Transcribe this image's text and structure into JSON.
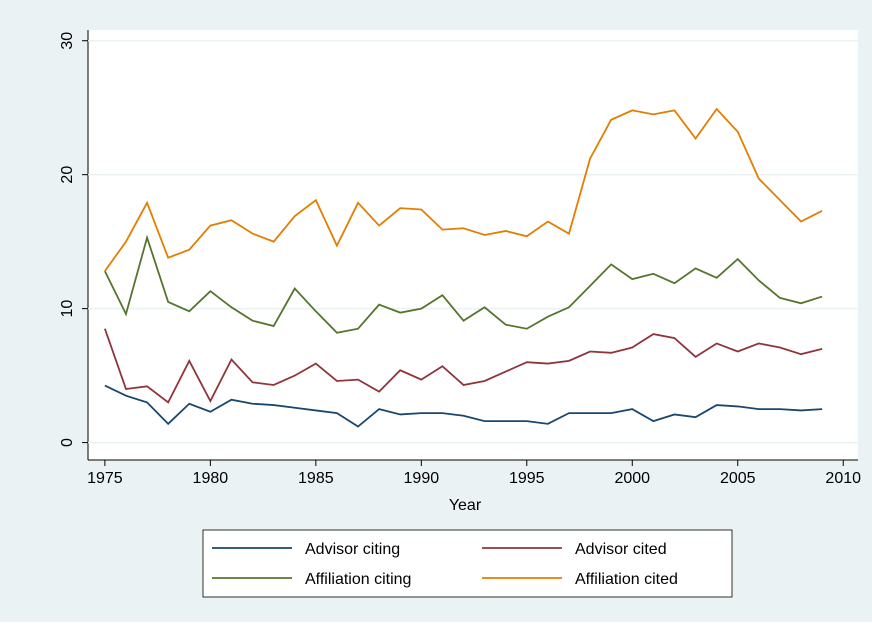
{
  "chart_data": {
    "type": "line",
    "x_label": "Year",
    "x": [
      1975,
      1976,
      1977,
      1978,
      1979,
      1980,
      1981,
      1982,
      1983,
      1984,
      1985,
      1986,
      1987,
      1988,
      1989,
      1990,
      1991,
      1992,
      1993,
      1994,
      1995,
      1996,
      1997,
      1998,
      1999,
      2000,
      2001,
      2002,
      2003,
      2004,
      2005,
      2006,
      2007,
      2008,
      2009
    ],
    "series": [
      {
        "name": "Advisor citing",
        "color": "#1a476f",
        "values": [
          4.26,
          3.5,
          3.0,
          1.4,
          2.9,
          2.3,
          3.2,
          2.9,
          2.8,
          2.6,
          2.4,
          2.2,
          1.2,
          2.5,
          2.1,
          2.2,
          2.2,
          2.0,
          1.6,
          1.6,
          1.6,
          1.4,
          2.2,
          2.2,
          2.2,
          2.5,
          1.6,
          2.1,
          1.9,
          2.8,
          2.7,
          2.5,
          2.5,
          2.4,
          2.5
        ]
      },
      {
        "name": "Advisor cited",
        "color": "#90353b",
        "values": [
          8.5,
          4.0,
          4.2,
          3.0,
          6.1,
          3.1,
          6.2,
          4.5,
          4.3,
          5.0,
          5.9,
          4.6,
          4.7,
          3.8,
          5.4,
          4.7,
          5.7,
          4.3,
          4.6,
          5.3,
          6.0,
          5.9,
          6.1,
          6.8,
          6.7,
          7.1,
          8.1,
          7.8,
          6.4,
          7.4,
          6.8,
          7.4,
          7.1,
          6.6,
          7.0
        ]
      },
      {
        "name": "Affiliation citing",
        "color": "#55752f",
        "values": [
          12.8,
          9.6,
          15.3,
          10.5,
          9.8,
          11.3,
          10.1,
          9.1,
          8.7,
          11.5,
          9.8,
          8.2,
          8.5,
          10.3,
          9.7,
          10.0,
          11.0,
          9.1,
          10.1,
          8.8,
          8.5,
          9.4,
          10.1,
          11.7,
          13.3,
          12.2,
          12.6,
          11.9,
          13.0,
          12.3,
          13.7,
          12.1,
          10.8,
          10.4,
          10.9
        ]
      },
      {
        "name": "Affiliation cited",
        "color": "#e37e00",
        "values": [
          12.8,
          15.0,
          17.9,
          13.8,
          14.4,
          16.2,
          16.6,
          15.6,
          15.0,
          16.9,
          18.1,
          14.7,
          17.9,
          16.2,
          17.5,
          17.4,
          15.9,
          16.0,
          15.5,
          15.8,
          15.4,
          16.5,
          15.6,
          21.2,
          24.1,
          24.8,
          24.5,
          24.8,
          22.7,
          24.9,
          23.2,
          19.7,
          18.1,
          16.5,
          17.3
        ]
      }
    ],
    "xlim": [
      1974.2,
      2010.7
    ],
    "xticks": [
      1975,
      1980,
      1985,
      1990,
      1995,
      2000,
      2005,
      2010
    ],
    "ylim": [
      -1.3,
      30.8
    ],
    "yticks": [
      0,
      10,
      20,
      30
    ],
    "grid": true,
    "legend": "bottom"
  }
}
